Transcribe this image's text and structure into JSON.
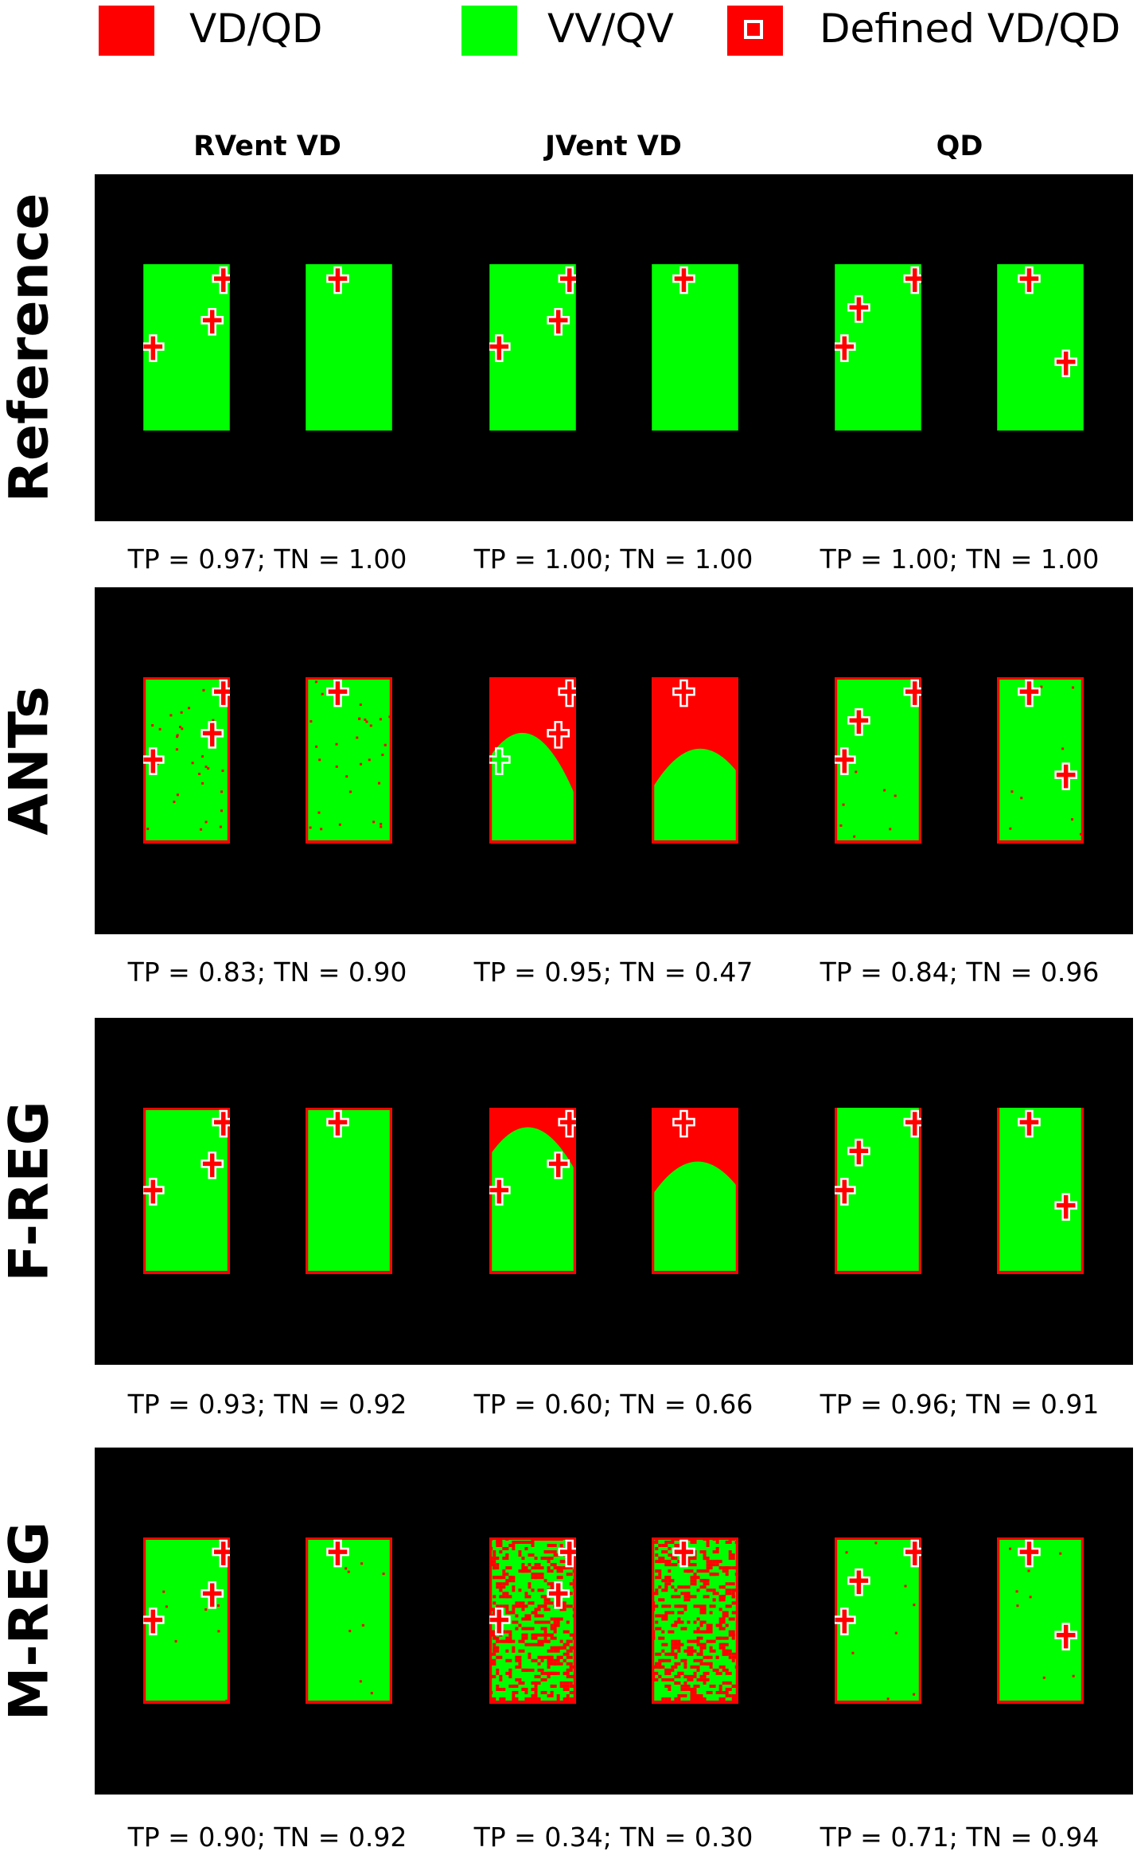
{
  "colors": {
    "defect": "#ff0000",
    "ventilated": "#00ff00",
    "background": "#000000",
    "outline": "#ffffff"
  },
  "legend": [
    {
      "label": "VD/QD",
      "swatch": "red-square"
    },
    {
      "label": "VV/QV",
      "swatch": "green-square"
    },
    {
      "label": "Defined VD/QD",
      "swatch": "red-square-white-outline"
    }
  ],
  "columns": [
    "RVent VD",
    "JVent VD",
    "QD"
  ],
  "rows": [
    {
      "label": "Reference",
      "scores": [
        "TP = 0.97; TN = 1.00",
        "TP = 1.00; TN = 1.00",
        "TP = 1.00; TN = 1.00"
      ]
    },
    {
      "label": "ANTs",
      "scores": [
        "TP = 0.83; TN = 0.90",
        "TP = 0.95; TN = 0.47",
        "TP = 0.84; TN = 0.96"
      ]
    },
    {
      "label": "F-REG",
      "scores": [
        "TP = 0.93; TN = 0.92",
        "TP = 0.60; TN = 0.66",
        "TP = 0.96; TN = 0.91"
      ]
    },
    {
      "label": "M-REG",
      "scores": [
        "TP = 0.90; TN = 0.92",
        "TP = 0.34; TN = 0.30",
        "TP = 0.71; TN = 0.94"
      ]
    }
  ]
}
